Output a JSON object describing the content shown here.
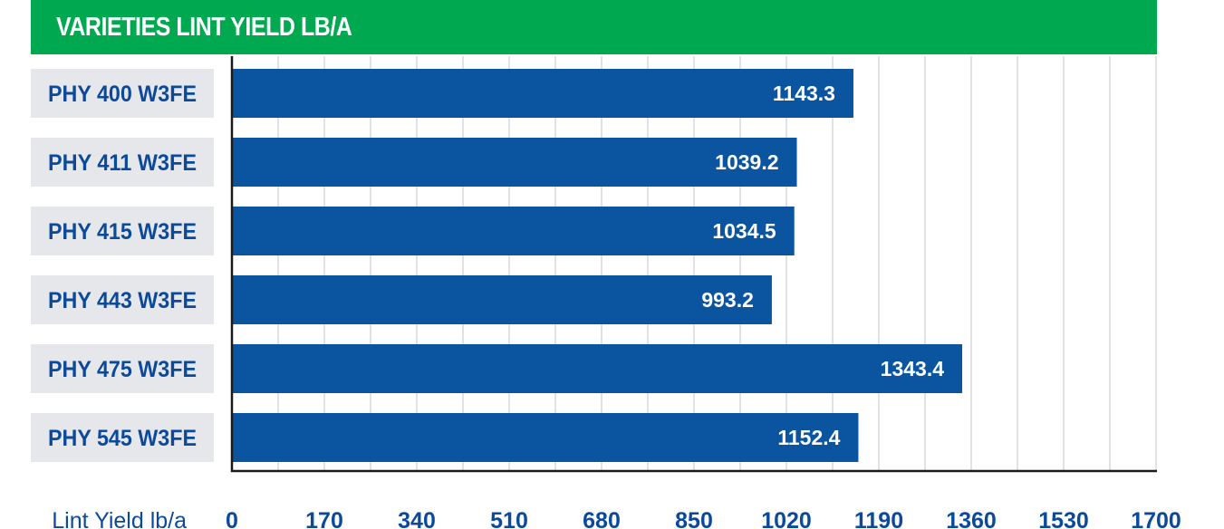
{
  "chart_data": {
    "type": "bar",
    "orientation": "horizontal",
    "title": "VARIETIES LINT YIELD LB/A",
    "xlabel": "Lint Yield lb/a",
    "ylabel": "",
    "categories": [
      "PHY 400 W3FE",
      "PHY 411 W3FE",
      "PHY 415 W3FE",
      "PHY 443 W3FE",
      "PHY 475 W3FE",
      "PHY 545 W3FE"
    ],
    "values": [
      1143.3,
      1039.2,
      1034.5,
      993.2,
      1343.4,
      1152.4
    ],
    "value_labels": [
      "1143.3",
      "1039.2",
      "1034.5",
      "993.2",
      "1343.4",
      "1152.4"
    ],
    "xlim": [
      0,
      1700
    ],
    "ticks": [
      0,
      170,
      340,
      510,
      680,
      850,
      1020,
      1190,
      1360,
      1530,
      1700
    ],
    "tick_labels": [
      "0",
      "170",
      "340",
      "510",
      "680",
      "850",
      "1020",
      "1190",
      "1360",
      "1530",
      "1700"
    ],
    "grid": true,
    "legend": "none"
  },
  "colors": {
    "title_background": "#00a84f",
    "title_text": "#ffffff",
    "bar": "#0a54a0",
    "category_background": "#e6e7ea",
    "text": "#0b4a9b",
    "gridline": "#cfcfcf",
    "axis": "#1a1a1a"
  }
}
